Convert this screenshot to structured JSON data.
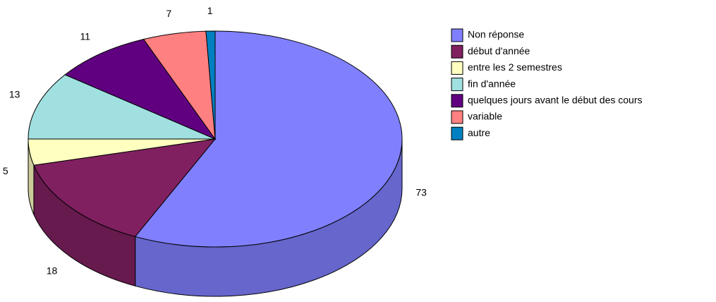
{
  "chart_data": {
    "type": "pie",
    "categories": [
      "Non réponse",
      "début d'année",
      "entre les 2 semestres",
      "fin d'année",
      "quelques jours avant le début des cours",
      "variable",
      "autre"
    ],
    "values": [
      73,
      18,
      5,
      13,
      11,
      7,
      1
    ],
    "colors": [
      "#8080ff",
      "#802060",
      "#ffffc0",
      "#a0e0e0",
      "#600080",
      "#ff8080",
      "#0080c0"
    ],
    "legend": "right"
  }
}
